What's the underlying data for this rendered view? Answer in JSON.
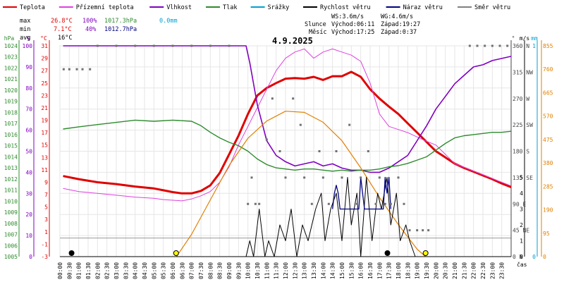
{
  "chart_data": {
    "type": "line",
    "title": "4.9.2025",
    "xlabel": "čas",
    "x_ticks": [
      "00:00",
      "00:30",
      "01:00",
      "01:30",
      "02:00",
      "02:30",
      "03:00",
      "03:30",
      "04:00",
      "04:30",
      "05:00",
      "05:30",
      "06:00",
      "06:30",
      "07:00",
      "07:30",
      "08:00",
      "08:30",
      "09:00",
      "09:30",
      "10:00",
      "10:30",
      "11:00",
      "11:30",
      "12:00",
      "12:30",
      "13:00",
      "13:30",
      "14:00",
      "14:30",
      "15:00",
      "15:30",
      "16:00",
      "16:30",
      "17:00",
      "17:30",
      "18:00",
      "18:30",
      "19:00",
      "19:30",
      "20:00",
      "20:30",
      "21:00",
      "21:30",
      "22:00",
      "22:30",
      "23:00",
      "23:30"
    ],
    "axes": {
      "pressure": {
        "unit": "hPa",
        "ticks": [
          "1024",
          "1023",
          "1022",
          "1021",
          "1020",
          "1019",
          "1018",
          "1017",
          "1016",
          "1015",
          "1014",
          "1013",
          "1012",
          "1011",
          "1010",
          "1009",
          "1008",
          "1007",
          "1006",
          "1005"
        ]
      },
      "humidity": {
        "unit": "%",
        "ticks": [
          "100",
          "90",
          "80",
          "70",
          "60",
          "50",
          "40",
          "30",
          "20",
          "10",
          "0"
        ]
      },
      "temperature": {
        "unit": "°C",
        "ticks": [
          "31",
          "29",
          "27",
          "25",
          "23",
          "21",
          "19",
          "17",
          "15",
          "13",
          "11",
          "9",
          "7",
          "5",
          "3",
          "1",
          "-1",
          "-3"
        ],
        "ylim": [
          -3,
          31
        ]
      },
      "direction": {
        "unit": "°",
        "ticks": [
          "360 N",
          "315 NW",
          "270 W",
          "225 SW",
          "180 S",
          "135 SE",
          "90 E",
          "45 NE",
          "0 N"
        ]
      },
      "wind": {
        "unit": "m/s",
        "ticks": [
          "5",
          "4",
          "3",
          "2",
          "1",
          "0"
        ]
      },
      "rain": {
        "unit": "mm",
        "ticks": [
          "1",
          "0"
        ]
      },
      "solar": {
        "unit": "",
        "ticks": [
          "855",
          "760",
          "665",
          "570",
          "475",
          "380",
          "285",
          "190",
          "95",
          "0"
        ]
      }
    },
    "legend": [
      {
        "name": "Teplota",
        "color": "#e00000"
      },
      {
        "name": "Přízemní teplota",
        "color": "#e040e0"
      },
      {
        "name": "Vlhkost",
        "color": "#8000c0"
      },
      {
        "name": "Tlak",
        "color": "#2e8b2e"
      },
      {
        "name": "Srážky",
        "color": "#00a0d0"
      },
      {
        "name": "Rychlost větru",
        "color": "#000000"
      },
      {
        "name": "Náraz větru",
        "color": "#000080"
      },
      {
        "name": "Směr větru",
        "color": "#808080"
      }
    ],
    "stats": {
      "max": {
        "label": "max",
        "temp": "26.8°C",
        "hum": "100%",
        "press": "1017.3hPa",
        "rain": "0.0mm"
      },
      "min": {
        "label": "min",
        "temp": "7.1°C",
        "hum": "40%",
        "press": "1012.7hPa"
      },
      "avg": {
        "label": "avg",
        "temp": "16°C"
      }
    },
    "info": {
      "ws": "WS:3.6m/s",
      "wg": "WG:4.6m/s",
      "sun_label": "Slunce",
      "sun_rise": "Východ:06:11",
      "sun_set": "Západ:19:27",
      "moon_label": "Měsíc",
      "moon_rise": "Východ:17:25",
      "moon_set": "Západ:0:37"
    },
    "series": [
      {
        "key": "temperature",
        "name": "Teplota",
        "axis": "temperature",
        "x": [
          0.17,
          1,
          2,
          3,
          4,
          5,
          5.5,
          6,
          6.5,
          7,
          7.5,
          8,
          8.5,
          9,
          9.5,
          10,
          10.5,
          11,
          11.5,
          12,
          12.5,
          13,
          13.5,
          14,
          14.5,
          15,
          15.5,
          16,
          16.5,
          17,
          17.5,
          18,
          18.5,
          19,
          19.5,
          20,
          20.5,
          21,
          21.5,
          22,
          22.5,
          23,
          23.5,
          24
        ],
        "y": [
          10,
          9.5,
          9,
          8.7,
          8.3,
          8,
          7.7,
          7.4,
          7.2,
          7.2,
          7.6,
          8.5,
          10.5,
          13.5,
          16.5,
          20,
          23,
          24.2,
          25,
          25.7,
          25.8,
          25.7,
          26,
          25.5,
          26.1,
          26.1,
          26.8,
          26,
          24,
          22.5,
          21.2,
          20,
          18.5,
          17,
          15.5,
          14,
          13,
          12,
          11.3,
          10.7,
          10.1,
          9.5,
          8.8,
          8.2
        ]
      },
      {
        "key": "ground_temp",
        "name": "Přízemní teplota",
        "axis": "temperature",
        "x": [
          0.17,
          1,
          2,
          3,
          4,
          5,
          5.5,
          6,
          6.5,
          7,
          7.5,
          8,
          8.5,
          9,
          9.5,
          10,
          10.5,
          11,
          11.5,
          12,
          12.5,
          13,
          13.5,
          14,
          14.5,
          15,
          15.5,
          16,
          16.5,
          17,
          17.5,
          18,
          18.5,
          19,
          19.5,
          20,
          20.5,
          21,
          21.5,
          22,
          22.5,
          23,
          23.5,
          24
        ],
        "y": [
          8,
          7.5,
          7.2,
          6.9,
          6.6,
          6.4,
          6.2,
          6.1,
          6,
          6.3,
          6.8,
          7.5,
          9,
          11.5,
          15,
          18,
          21,
          24,
          27,
          29,
          30,
          30.5,
          29,
          30,
          30.5,
          30,
          29.5,
          28.5,
          25,
          20,
          18,
          17.5,
          17,
          16.3,
          15.6,
          15,
          13.5,
          12,
          11.4,
          10.8,
          10.2,
          9.6,
          9,
          8.4
        ]
      },
      {
        "key": "humidity",
        "name": "Vlhkost",
        "axis": "humidity",
        "x": [
          0.17,
          1,
          2,
          3,
          4,
          5,
          6,
          7,
          8,
          9,
          9.9,
          10.1,
          10.5,
          11,
          11.5,
          12,
          12.5,
          13,
          13.5,
          14,
          14.5,
          15,
          15.5,
          16,
          16.5,
          17,
          17.5,
          18,
          18.5,
          19,
          19.5,
          20,
          20.5,
          21,
          21.5,
          22,
          22.5,
          23,
          23.5,
          24
        ],
        "y": [
          100,
          100,
          100,
          100,
          100,
          100,
          100,
          100,
          100,
          100,
          100,
          92,
          72,
          55,
          48,
          45,
          43,
          44,
          45,
          43,
          44,
          42,
          41,
          41,
          40,
          40,
          42,
          45,
          48,
          55,
          62,
          70,
          76,
          82,
          86,
          90,
          91,
          93,
          94,
          95
        ]
      },
      {
        "key": "pressure",
        "name": "Tlak",
        "axis": "pressure",
        "x": [
          0.17,
          1,
          2,
          3,
          4,
          5,
          6,
          7,
          7.5,
          8,
          8.5,
          9,
          9.5,
          10,
          10.5,
          11,
          11.5,
          12,
          12.5,
          13,
          13.5,
          14,
          14.5,
          15,
          15.5,
          16,
          16.5,
          17,
          17.5,
          18,
          18.5,
          19,
          19.5,
          20,
          20.5,
          21,
          21.5,
          22,
          22.5,
          23,
          23.5,
          24
        ],
        "y": [
          1016.5,
          1016.7,
          1016.9,
          1017.1,
          1017.3,
          1017.2,
          1017.3,
          1017.2,
          1016.8,
          1016.2,
          1015.7,
          1015.3,
          1015,
          1014.5,
          1013.8,
          1013.3,
          1013,
          1012.9,
          1012.8,
          1012.9,
          1012.9,
          1012.8,
          1012.7,
          1012.8,
          1012.7,
          1012.8,
          1012.8,
          1012.9,
          1013.1,
          1013.2,
          1013.4,
          1013.7,
          1014,
          1014.6,
          1015.2,
          1015.7,
          1015.9,
          1016,
          1016.1,
          1016.2,
          1016.2,
          1016.3
        ]
      },
      {
        "key": "solar",
        "name": "",
        "axis": "solar",
        "x": [
          6.2,
          7,
          8,
          9,
          10,
          11,
          12,
          13,
          14,
          15,
          16,
          17,
          18,
          18.5,
          19,
          19.45
        ],
        "y": [
          0,
          90,
          230,
          370,
          480,
          550,
          590,
          585,
          545,
          470,
          360,
          240,
          130,
          80,
          30,
          0
        ]
      },
      {
        "key": "wind_speed",
        "name": "Rychlost větru",
        "axis": "wind",
        "x": [
          0,
          9.9,
          10.1,
          10.3,
          10.6,
          10.9,
          11.1,
          11.4,
          11.7,
          12,
          12.3,
          12.6,
          12.9,
          13.2,
          13.6,
          13.9,
          14.1,
          14.4,
          14.7,
          15,
          15.3,
          15.5,
          15.8,
          16,
          16.3,
          16.6,
          16.9,
          17.1,
          17.4,
          17.6,
          17.9,
          18.1,
          18.4,
          18.6,
          18.9,
          24
        ],
        "y": [
          0,
          0,
          1,
          0,
          3,
          0,
          1,
          0,
          2,
          1,
          3,
          0,
          2,
          1,
          3,
          4,
          1,
          3,
          4,
          1,
          5,
          2,
          4,
          0,
          5,
          1,
          4,
          3,
          5,
          2,
          4,
          1,
          2,
          1,
          0,
          0
        ]
      },
      {
        "key": "wind_gust",
        "name": "Náraz větru",
        "axis": "wind",
        "x": [
          14.5,
          14.6,
          14.7,
          14.8,
          14.9,
          15.9,
          16,
          16.1,
          16.2,
          17.2,
          17.3,
          17.4,
          17.5,
          17.6
        ],
        "y": [
          3,
          4,
          4.5,
          4,
          3,
          3,
          5,
          4,
          3,
          3,
          5,
          4,
          5,
          3
        ]
      },
      {
        "key": "wind_dir",
        "name": "Směr větru",
        "type": "scatter",
        "axis": "direction",
        "x": [
          0.2,
          0.5,
          0.9,
          1.2,
          1.6,
          2,
          3,
          4,
          5,
          6,
          7,
          8,
          9,
          10,
          10.2,
          10.4,
          10.6,
          11,
          11.3,
          11.7,
          12,
          12.4,
          12.8,
          13,
          13.4,
          13.8,
          14,
          14.3,
          14.7,
          15,
          15.4,
          15.8,
          16,
          16.4,
          16.8,
          17,
          17.3,
          17.6,
          18,
          18.3,
          18.6,
          19,
          19.3,
          19.6,
          21.8,
          22.2,
          22.6,
          23,
          23.4,
          23.8
        ],
        "y": [
          320,
          320,
          320,
          320,
          320,
          360,
          360,
          360,
          360,
          360,
          360,
          360,
          360,
          90,
          135,
          90,
          90,
          200,
          270,
          180,
          135,
          270,
          225,
          135,
          90,
          180,
          135,
          90,
          180,
          135,
          225,
          90,
          135,
          180,
          90,
          135,
          90,
          90,
          135,
          90,
          45,
          45,
          45,
          45,
          360,
          360,
          360,
          360,
          360,
          360
        ]
      }
    ],
    "markers": [
      {
        "name": "moonset",
        "x": 0.62
      },
      {
        "name": "sunrise",
        "x": 6.18
      },
      {
        "name": "moonrise",
        "x": 17.42
      },
      {
        "name": "sunset",
        "x": 19.45
      }
    ]
  }
}
